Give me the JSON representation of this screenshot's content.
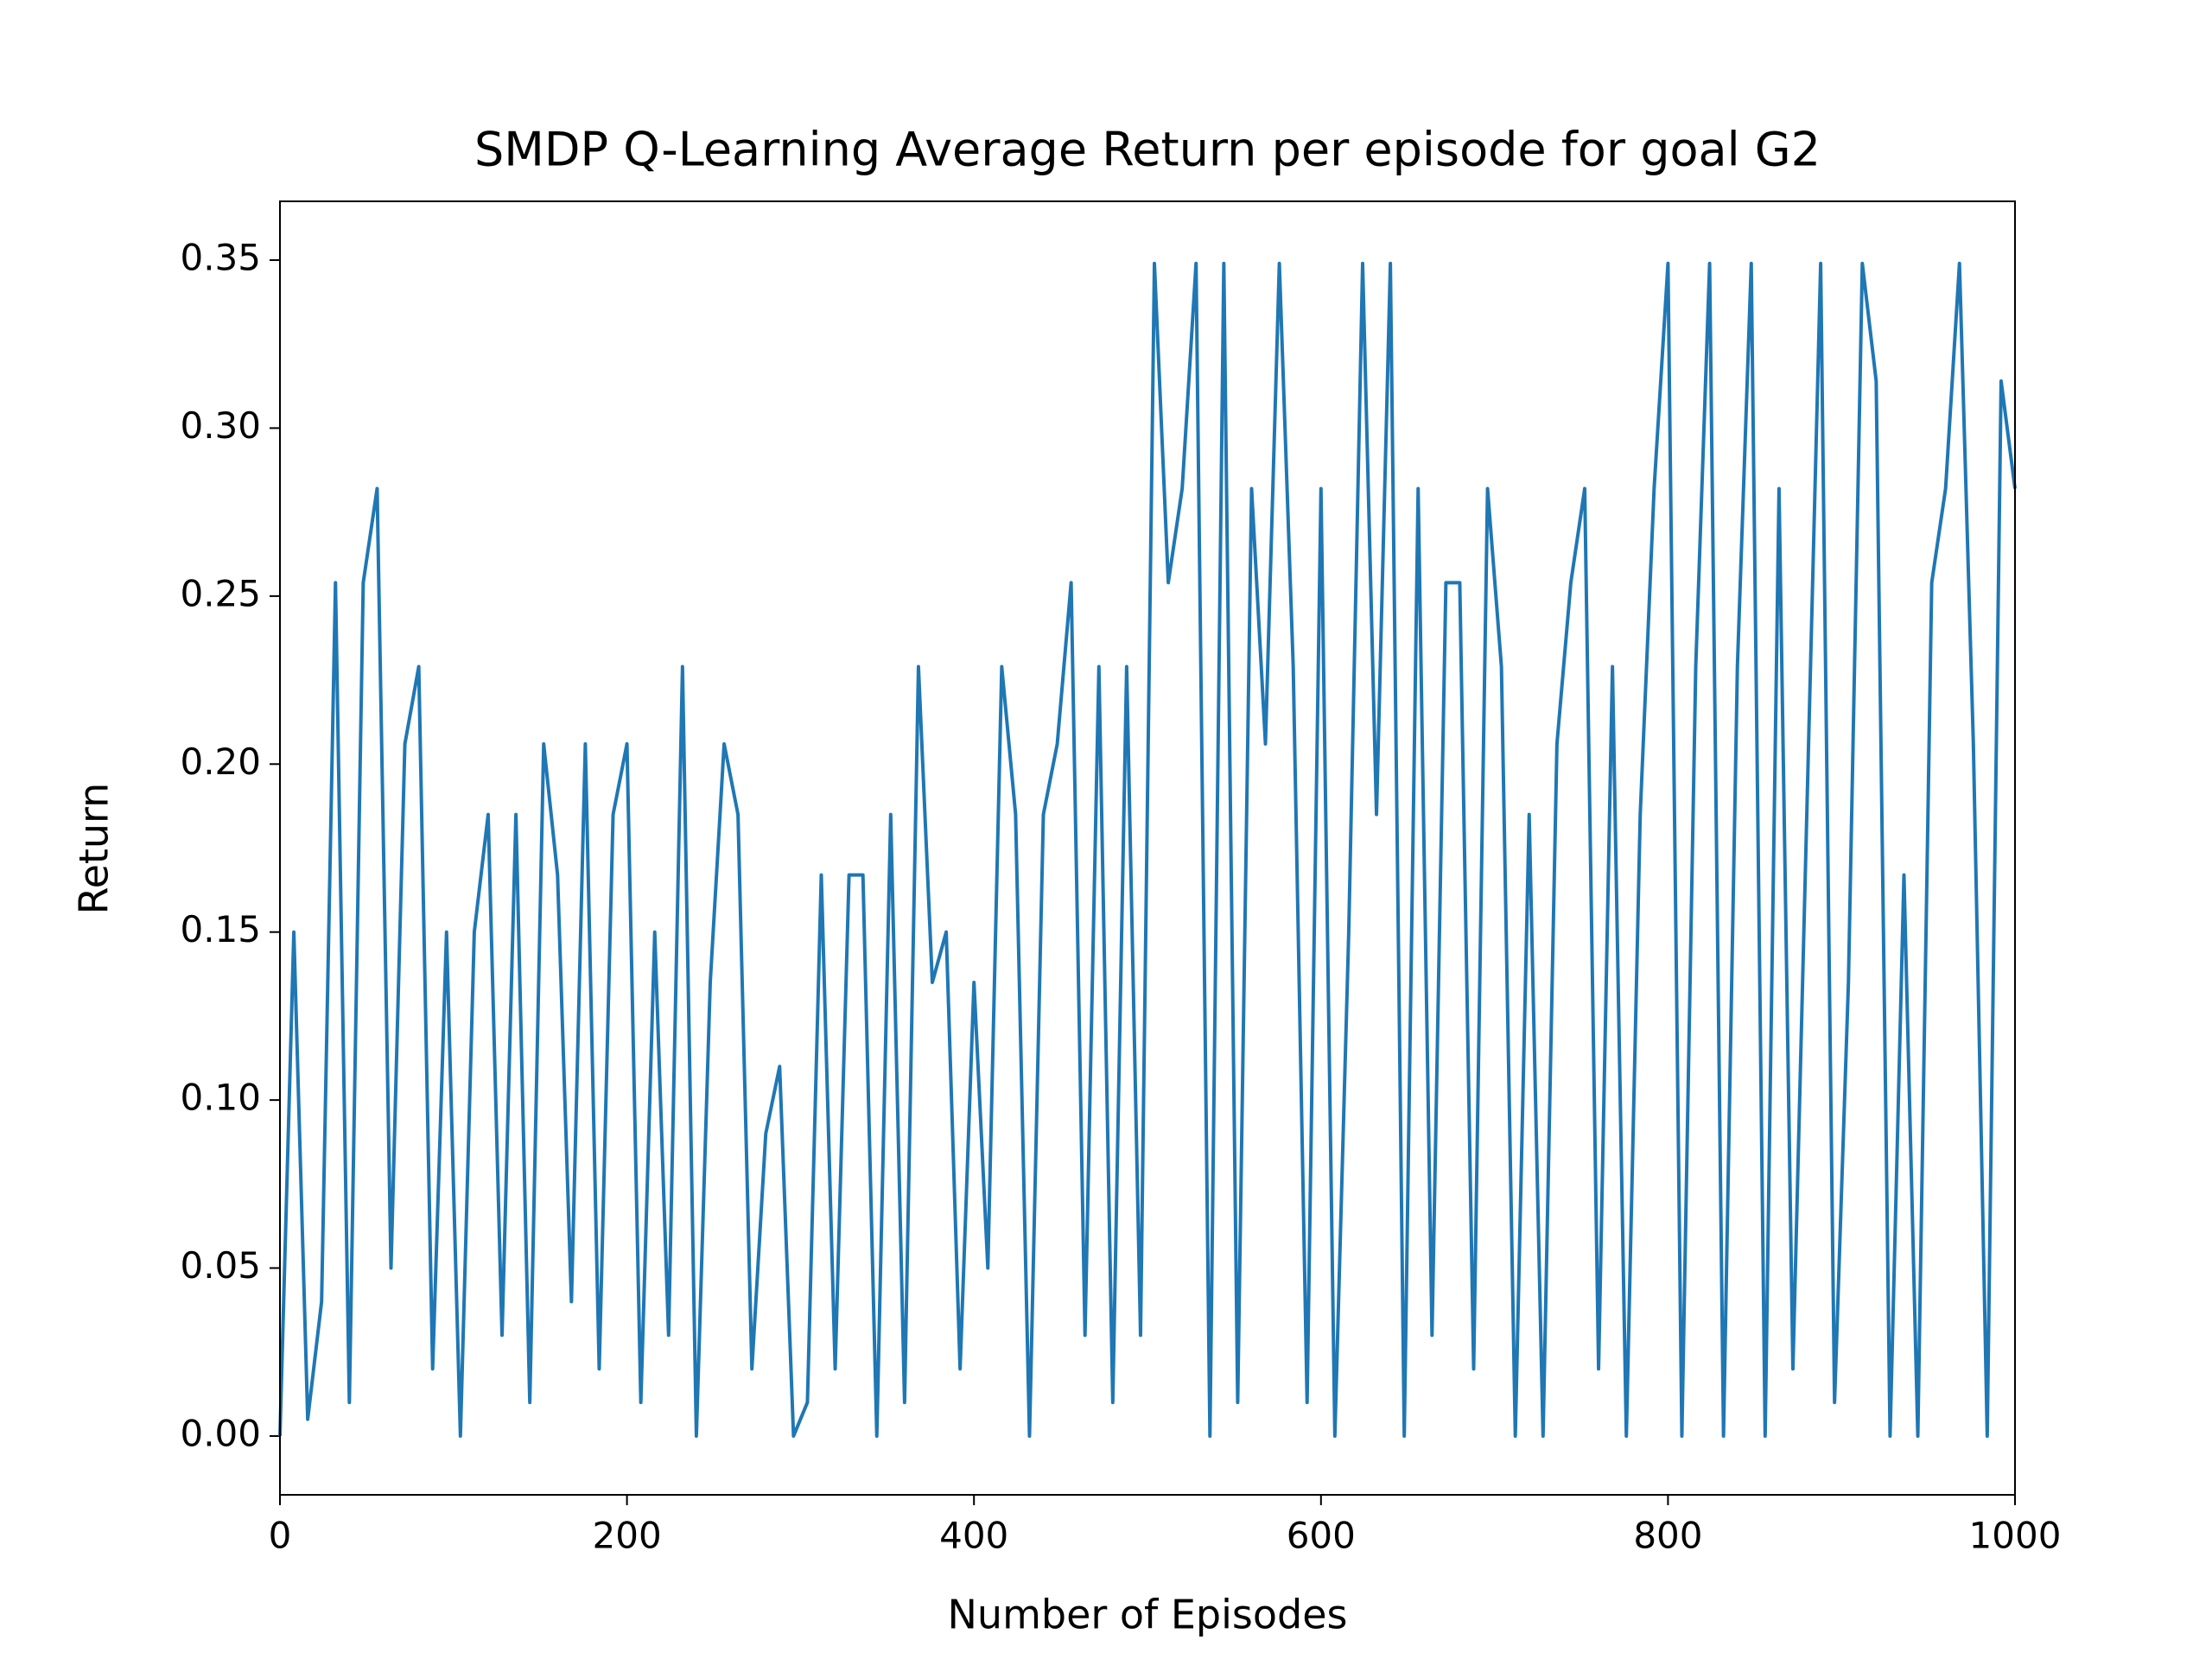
{
  "chart_data": {
    "type": "line",
    "title": "SMDP Q-Learning Average Return per episode for goal G2",
    "xlabel": "Number of Episodes",
    "ylabel": "Return",
    "x": [
      0,
      8,
      16,
      24,
      32,
      40,
      48,
      56,
      64,
      72,
      80,
      88,
      96,
      104,
      112,
      120,
      128,
      136,
      144,
      152,
      160,
      168,
      176,
      184,
      192,
      200,
      208,
      216,
      224,
      232,
      240,
      248,
      256,
      264,
      272,
      280,
      288,
      296,
      304,
      312,
      320,
      328,
      336,
      344,
      352,
      360,
      368,
      376,
      384,
      392,
      400,
      408,
      416,
      424,
      432,
      440,
      448,
      456,
      464,
      472,
      480,
      488,
      496,
      504,
      512,
      520,
      528,
      536,
      544,
      552,
      560,
      568,
      576,
      584,
      592,
      600,
      608,
      616,
      624,
      632,
      640,
      648,
      656,
      664,
      672,
      680,
      688,
      696,
      704,
      712,
      720,
      728,
      736,
      744,
      752,
      760,
      768,
      776,
      784,
      792,
      800,
      808,
      816,
      824,
      832,
      840,
      848,
      856,
      864,
      872,
      880,
      888,
      896,
      904,
      912,
      920,
      928,
      936,
      944,
      952,
      960,
      968,
      976,
      984,
      992,
      1000
    ],
    "series": [
      {
        "name": "Return",
        "color": "#1f77b4",
        "values": [
          0,
          0.15,
          0.005,
          0.04,
          0.254,
          0.01,
          0.254,
          0.282,
          0.05,
          0.206,
          0.229,
          0.02,
          0.15,
          0.0,
          0.15,
          0.185,
          0.03,
          0.185,
          0.01,
          0.206,
          0.167,
          0.04,
          0.206,
          0.02,
          0.185,
          0.206,
          0.01,
          0.15,
          0.03,
          0.229,
          0.0,
          0.135,
          0.206,
          0.185,
          0.02,
          0.09,
          0.11,
          0.0,
          0.01,
          0.167,
          0.02,
          0.167,
          0.167,
          0.0,
          0.185,
          0.01,
          0.229,
          0.135,
          0.15,
          0.02,
          0.135,
          0.05,
          0.229,
          0.185,
          0.0,
          0.185,
          0.206,
          0.254,
          0.03,
          0.229,
          0.01,
          0.229,
          0.03,
          0.349,
          0.254,
          0.282,
          0.349,
          0.0,
          0.349,
          0.01,
          0.282,
          0.206,
          0.349,
          0.229,
          0.01,
          0.282,
          0.0,
          0.15,
          0.349,
          0.185,
          0.349,
          0.0,
          0.282,
          0.03,
          0.254,
          0.254,
          0.02,
          0.282,
          0.229,
          0.0,
          0.185,
          0.0,
          0.206,
          0.254,
          0.282,
          0.02,
          0.229,
          0.0,
          0.185,
          0.282,
          0.349,
          0.0,
          0.229,
          0.349,
          0.0,
          0.229,
          0.349,
          0.0,
          0.282,
          0.02,
          0.185,
          0.349,
          0.01,
          0.135,
          0.349,
          0.314,
          0.0,
          0.167,
          0.0,
          0.254,
          0.282,
          0.349,
          0.206,
          0.0,
          0.314,
          0.282
        ]
      }
    ],
    "xlim": [
      0,
      1000
    ],
    "xticks": [
      0,
      200,
      400,
      600,
      800,
      1000
    ],
    "ylim": [
      -0.0175,
      0.3675
    ],
    "yticks": [
      {
        "value": 0,
        "label": "0.00"
      },
      {
        "value": 0.05,
        "label": "0.05"
      },
      {
        "value": 0.1,
        "label": "0.10"
      },
      {
        "value": 0.15,
        "label": "0.15"
      },
      {
        "value": 0.2,
        "label": "0.20"
      },
      {
        "value": 0.25,
        "label": "0.25"
      },
      {
        "value": 0.3,
        "label": "0.30"
      },
      {
        "value": 0.35,
        "label": "0.35"
      }
    ],
    "grid": false
  }
}
